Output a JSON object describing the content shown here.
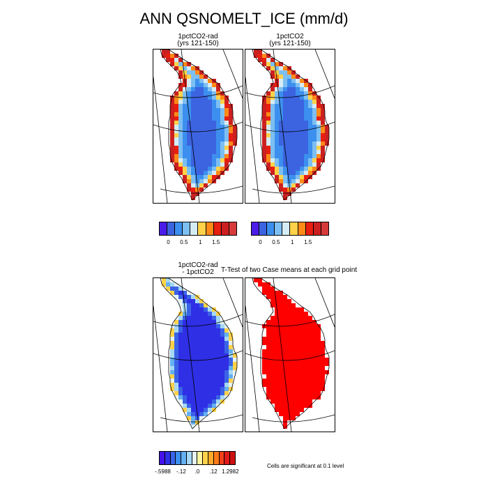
{
  "title": "ANN QSNOMELT_ICE (mm/d)",
  "panels": {
    "p1": {
      "line1": "1pctCO2-rad",
      "line2": "(yrs 121-150)"
    },
    "p2": {
      "line1": "1pctCO2",
      "line2": "(yrs 121-150)"
    },
    "p3": {
      "line1": "1pctCO2-rad",
      "line2": "- 1pctCO2"
    },
    "p4": {
      "title": "T-Test of two Case means at each grid point"
    }
  },
  "colorbar_top": {
    "colors": [
      "#4b1ce8",
      "#3c63e0",
      "#3c8fee",
      "#7dbff2",
      "#d6ecf5",
      "#ffd24a",
      "#ff8a17",
      "#e81e0f",
      "#cc2020",
      "#d63a3a"
    ],
    "ticks": [
      "0",
      "0.5",
      "1",
      "1.5"
    ]
  },
  "colorbar_bottom": {
    "colors": [
      "#4411e8",
      "#2f2fe6",
      "#3a63e6",
      "#3c8fee",
      "#64b0f2",
      "#a6d8f5",
      "#e6f2f2",
      "#fff5a0",
      "#ffd24a",
      "#ffaa2a",
      "#ff7a17",
      "#f0401a",
      "#e01a1a",
      "#cc1010"
    ],
    "ticks": [
      "-.5988",
      "-.12",
      ".0",
      ".12",
      "1.2982"
    ]
  },
  "footnote": "Cells are significant at 0.1 level",
  "chart_data": [
    {
      "type": "heatmap",
      "title": "1pctCO2-rad (yrs 121-150)",
      "ticks": [
        "0",
        "0.5",
        "1",
        "1.5"
      ]
    },
    {
      "type": "heatmap",
      "title": "1pctCO2 (yrs 121-150)",
      "ticks": [
        "0",
        "0.5",
        "1",
        "1.5"
      ]
    },
    {
      "type": "heatmap",
      "title": "1pctCO2-rad - 1pctCO2",
      "ticks": [
        "-.5988",
        "-.12",
        ".0",
        ".12",
        "1.2982"
      ]
    },
    {
      "type": "heatmap",
      "title": "T-Test of two Case means at each grid point",
      "annotation": "Cells are significant at 0.1 level"
    }
  ]
}
